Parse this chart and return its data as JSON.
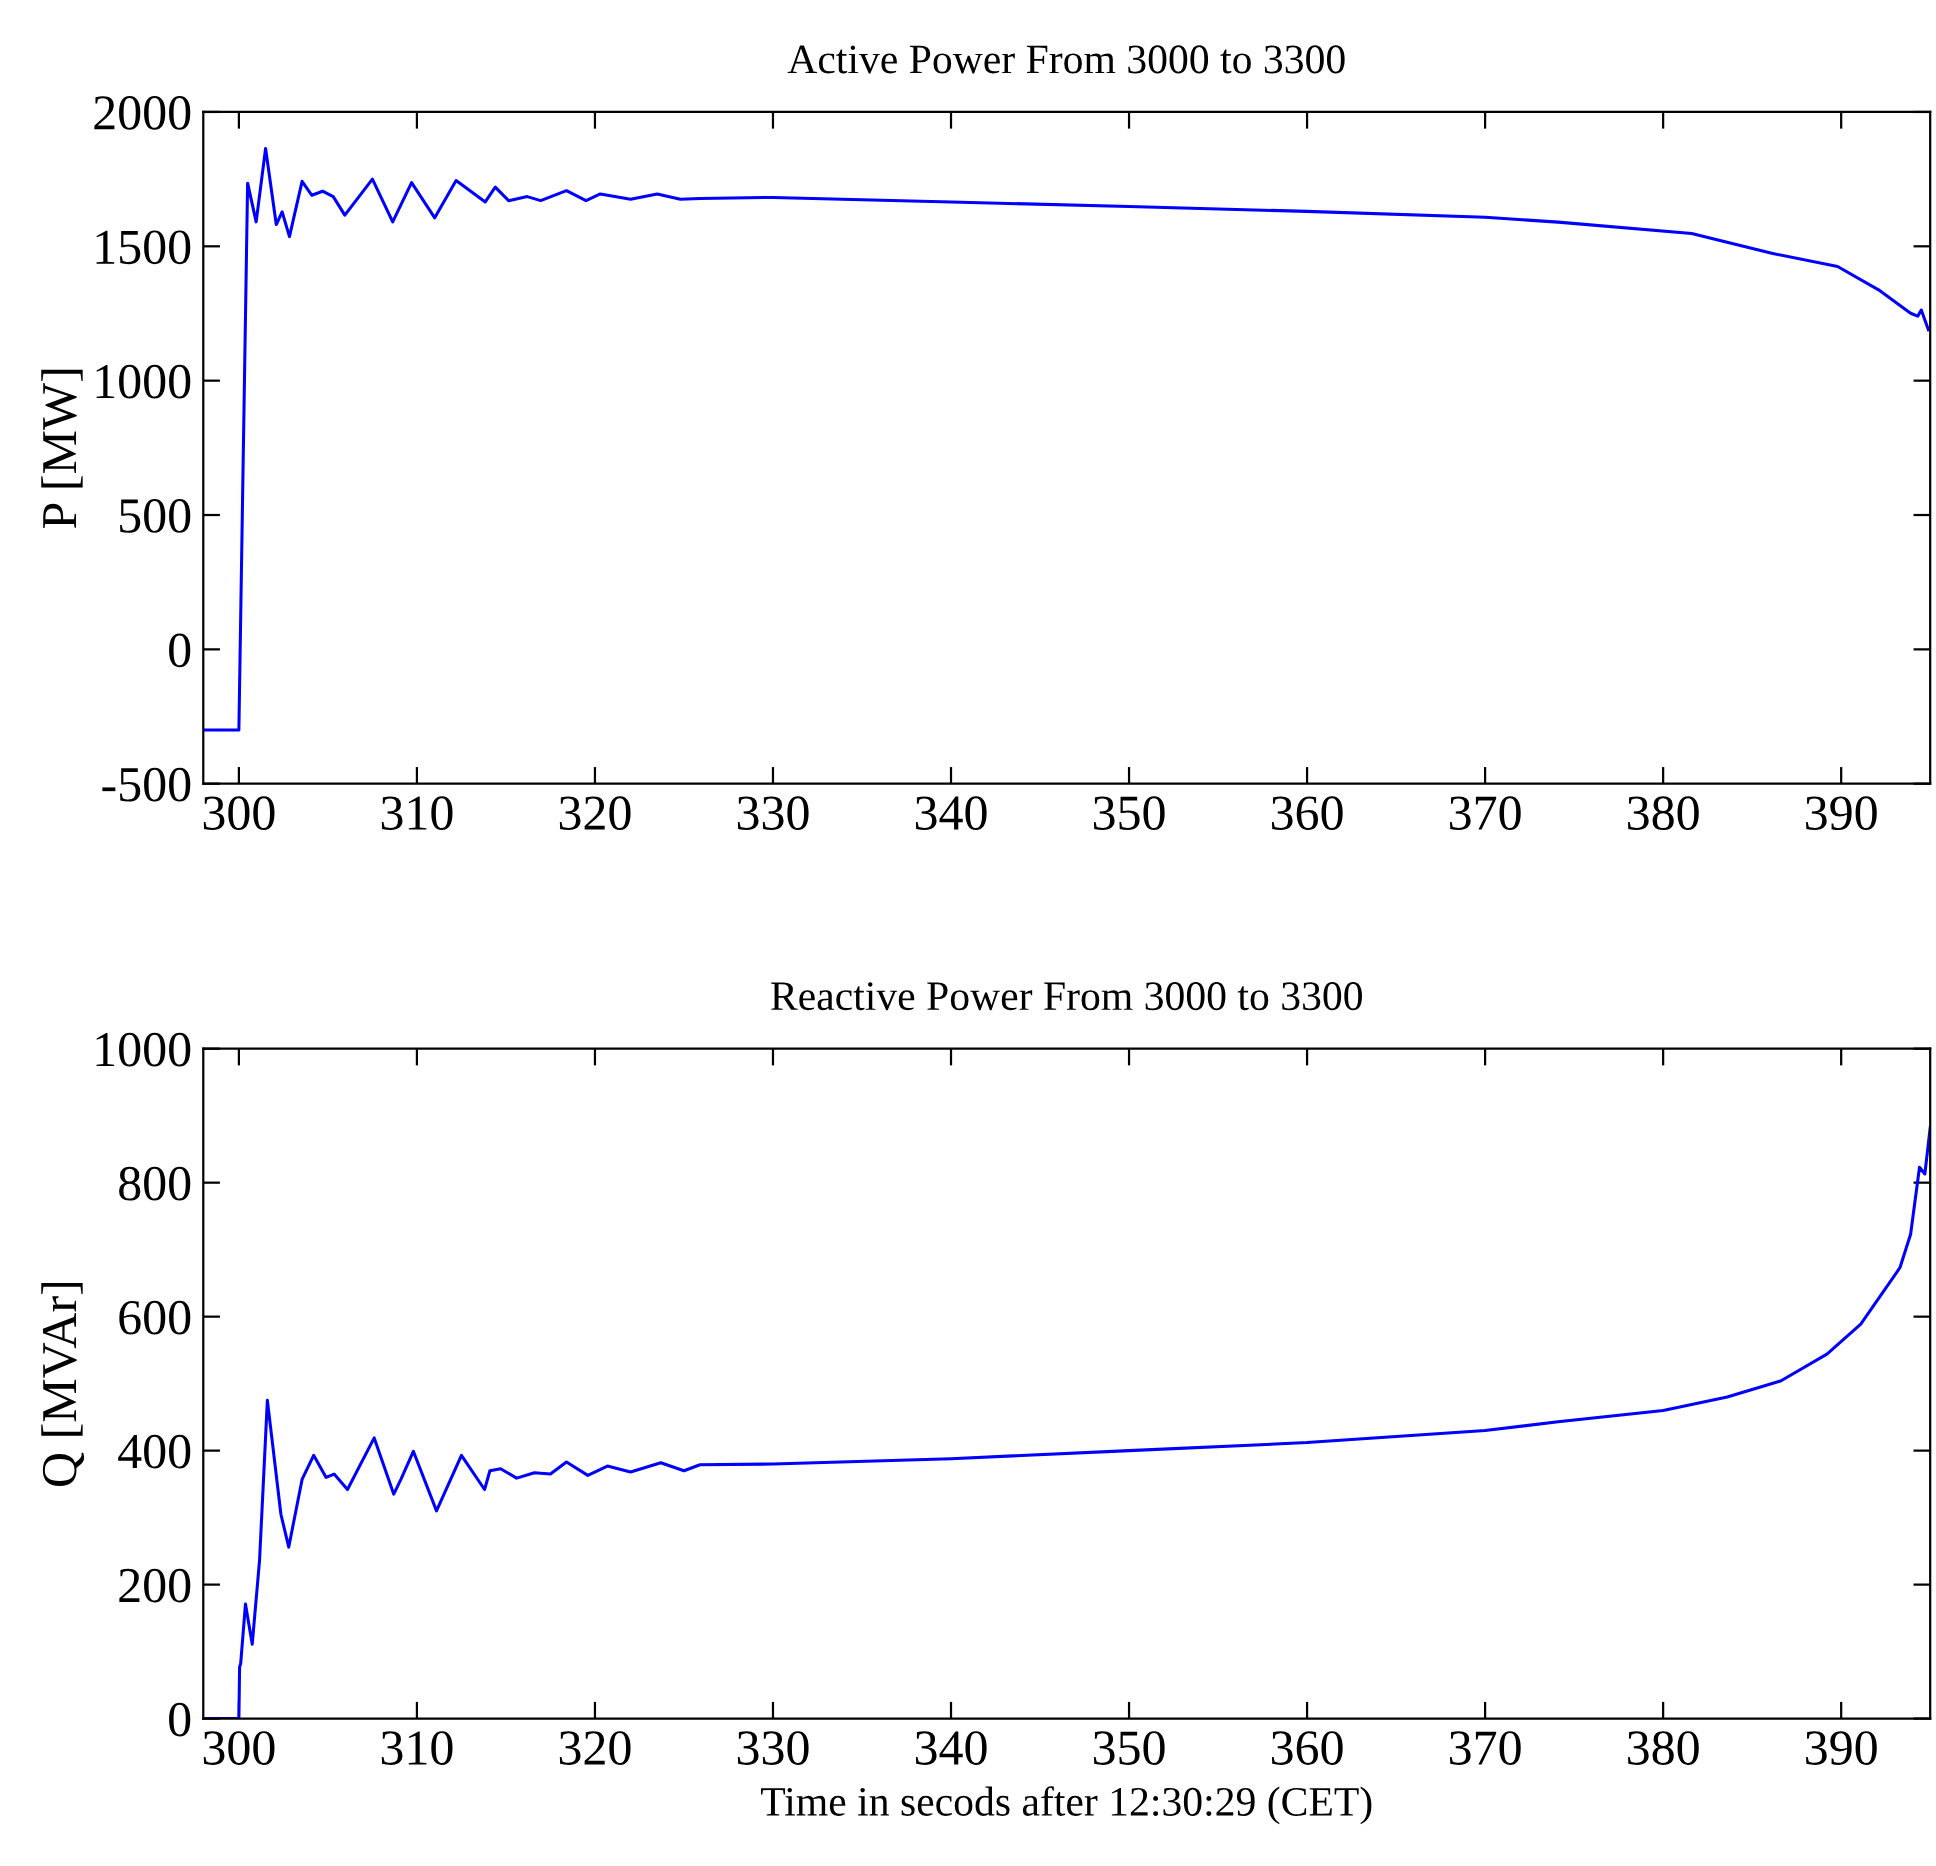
{
  "chart_data": [
    {
      "type": "line",
      "title": "Active Power From 3000 to 3300",
      "ylabel": "P [MW]",
      "xlim": [
        298,
        395
      ],
      "ylim": [
        -500,
        2000
      ],
      "xticks": [
        300,
        310,
        320,
        330,
        340,
        350,
        360,
        370,
        380,
        390
      ],
      "yticks": [
        -500,
        0,
        500,
        1000,
        1500,
        2000
      ],
      "grid": false,
      "series": [
        {
          "color": "#0000ff",
          "x": [
            298,
            300,
            300.49,
            300.97,
            301.5,
            302.1,
            302.43,
            302.84,
            303.55,
            304.1,
            304.7,
            305.3,
            305.95,
            307.5,
            308.64,
            309.7,
            311.0,
            312.2,
            313.84,
            314.4,
            315.15,
            316.2,
            316.95,
            318.4,
            319.5,
            320.3,
            322.0,
            323.5,
            324.8,
            325.9,
            330,
            340,
            350,
            360,
            370,
            374.1,
            381.6,
            386.1,
            389.8,
            392.1,
            393.9,
            394.3,
            394.5,
            394.9
          ],
          "values": [
            -300,
            -300,
            1735,
            1591,
            1864,
            1581,
            1628,
            1536,
            1742,
            1690,
            1705,
            1685,
            1616,
            1750,
            1591,
            1737,
            1606,
            1745,
            1665,
            1720,
            1670,
            1685,
            1670,
            1707,
            1670,
            1695,
            1675,
            1695,
            1675,
            1678,
            1682,
            1665,
            1648,
            1630,
            1608,
            1590,
            1548,
            1474,
            1425,
            1338,
            1251,
            1240,
            1263,
            1189
          ]
        }
      ]
    },
    {
      "type": "line",
      "title": "Reactive Power From 3000 to 3300",
      "ylabel": "Q [MVAr]",
      "xlabel": "Time in secods after 12:30:29 (CET)",
      "xlim": [
        298,
        395
      ],
      "ylim": [
        0,
        1000
      ],
      "xticks": [
        300,
        310,
        320,
        330,
        340,
        350,
        360,
        370,
        380,
        390
      ],
      "yticks": [
        0,
        200,
        400,
        600,
        800,
        1000
      ],
      "grid": false,
      "series": [
        {
          "color": "#0000ff",
          "x": [
            298,
            300,
            300.04,
            300.1,
            300.37,
            300.75,
            301.16,
            301.6,
            302.36,
            302.8,
            303.55,
            304.2,
            304.9,
            305.35,
            306.1,
            307.6,
            308.7,
            309.1,
            309.8,
            311.1,
            312.5,
            313.8,
            314.1,
            314.7,
            315.6,
            316.6,
            317.5,
            318.4,
            319.6,
            320.7,
            322.0,
            323.7,
            325.0,
            325.9,
            330,
            340,
            350,
            360,
            370,
            374.1,
            380,
            383.6,
            386.6,
            389.2,
            391.1,
            393.3,
            393.9,
            394.4,
            394.7,
            395.0
          ],
          "values": [
            0,
            0,
            77,
            82,
            171,
            111,
            236,
            475,
            305,
            256,
            357,
            393,
            360,
            365,
            342,
            419,
            335,
            357,
            399,
            310,
            393,
            342,
            370,
            373,
            359,
            367,
            365,
            383,
            363,
            377,
            368,
            382,
            370,
            379,
            380,
            388,
            400,
            412,
            430,
            443,
            460,
            480,
            504,
            544,
            589,
            673,
            723,
            823,
            813,
            882
          ]
        }
      ]
    }
  ]
}
